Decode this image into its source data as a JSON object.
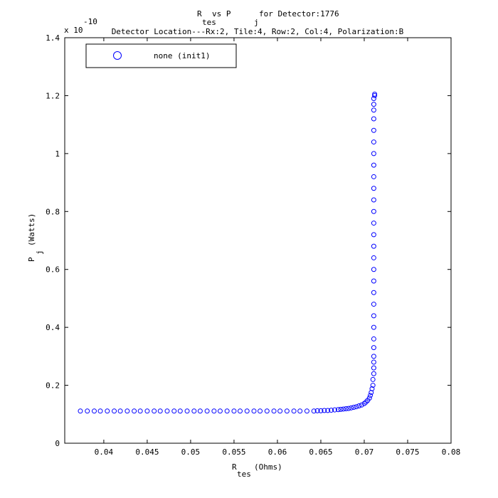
{
  "chart_data": {
    "type": "scatter",
    "title_main": "R",
    "title_main_sub": "tes",
    "title_vs": " vs P",
    "title_vs_sub": "j",
    "title_rest": " for Detector:1776",
    "subtitle": "Detector Location---Rx:2, Tile:4, Row:2, Col:4, Polarization:B",
    "xlabel_main": "R",
    "xlabel_sub": "tes",
    "xlabel_unit": "(Ohms)",
    "ylabel_main": "P",
    "ylabel_sub": "j",
    "ylabel_unit": "(Watts)",
    "y_exponent_base": "x 10",
    "y_exponent_power": "-10",
    "xlim": [
      0.0355,
      0.08
    ],
    "ylim": [
      0,
      1.4
    ],
    "x_ticks": [
      0.04,
      0.045,
      0.05,
      0.055,
      0.06,
      0.065,
      0.07,
      0.075,
      0.08
    ],
    "x_tick_labels": [
      "0.04",
      "0.045",
      "0.05",
      "0.055",
      "0.06",
      "0.065",
      "0.07",
      "0.075",
      "0.08"
    ],
    "y_ticks": [
      0,
      0.2,
      0.4,
      0.6,
      0.8,
      1.0,
      1.2,
      1.4
    ],
    "y_tick_labels": [
      "0",
      "0.2",
      "0.4",
      "0.6",
      "0.8",
      "1",
      "1.2",
      "1.4"
    ],
    "grid": false,
    "legend_position": "top-left",
    "series": [
      {
        "name": "none (init1)",
        "color": "#0000ff",
        "marker": "circle-open",
        "x": [
          0.0373,
          0.0381,
          0.0389,
          0.0396,
          0.0404,
          0.0412,
          0.0419,
          0.0427,
          0.0435,
          0.0442,
          0.045,
          0.0458,
          0.0465,
          0.0473,
          0.0481,
          0.0488,
          0.0496,
          0.0504,
          0.0511,
          0.0519,
          0.0527,
          0.0534,
          0.0542,
          0.055,
          0.0557,
          0.0565,
          0.0573,
          0.058,
          0.0588,
          0.0596,
          0.0603,
          0.0611,
          0.0619,
          0.0626,
          0.0634,
          0.0642,
          0.0646,
          0.065,
          0.0654,
          0.0658,
          0.0662,
          0.0666,
          0.067,
          0.0673,
          0.0676,
          0.0679,
          0.0682,
          0.0685,
          0.0688,
          0.0691,
          0.0694,
          0.0697,
          0.07,
          0.0702,
          0.0704,
          0.0706,
          0.0707,
          0.0708,
          0.0709,
          0.071,
          0.071,
          0.0711,
          0.0711,
          0.0711,
          0.0711,
          0.0711,
          0.0711,
          0.0711,
          0.0711,
          0.0711,
          0.0711,
          0.0711,
          0.0711,
          0.0711,
          0.0711,
          0.0711,
          0.0711,
          0.0711,
          0.0711,
          0.0711,
          0.0711,
          0.0711,
          0.0711,
          0.0711,
          0.0711,
          0.0711,
          0.0711,
          0.0711,
          0.0711,
          0.0712,
          0.0712
        ],
        "y": [
          0.111,
          0.111,
          0.111,
          0.111,
          0.111,
          0.111,
          0.111,
          0.111,
          0.111,
          0.111,
          0.111,
          0.111,
          0.111,
          0.111,
          0.111,
          0.111,
          0.111,
          0.111,
          0.111,
          0.111,
          0.111,
          0.111,
          0.111,
          0.111,
          0.111,
          0.111,
          0.111,
          0.111,
          0.111,
          0.111,
          0.111,
          0.111,
          0.111,
          0.111,
          0.111,
          0.111,
          0.112,
          0.112,
          0.113,
          0.113,
          0.114,
          0.115,
          0.116,
          0.117,
          0.118,
          0.119,
          0.12,
          0.122,
          0.124,
          0.126,
          0.129,
          0.132,
          0.137,
          0.142,
          0.148,
          0.156,
          0.165,
          0.175,
          0.188,
          0.2,
          0.22,
          0.24,
          0.26,
          0.28,
          0.3,
          0.33,
          0.36,
          0.4,
          0.44,
          0.48,
          0.52,
          0.56,
          0.6,
          0.64,
          0.68,
          0.72,
          0.76,
          0.8,
          0.84,
          0.88,
          0.92,
          0.96,
          1.0,
          1.04,
          1.08,
          1.12,
          1.15,
          1.17,
          1.19,
          1.2,
          1.205
        ]
      }
    ]
  }
}
